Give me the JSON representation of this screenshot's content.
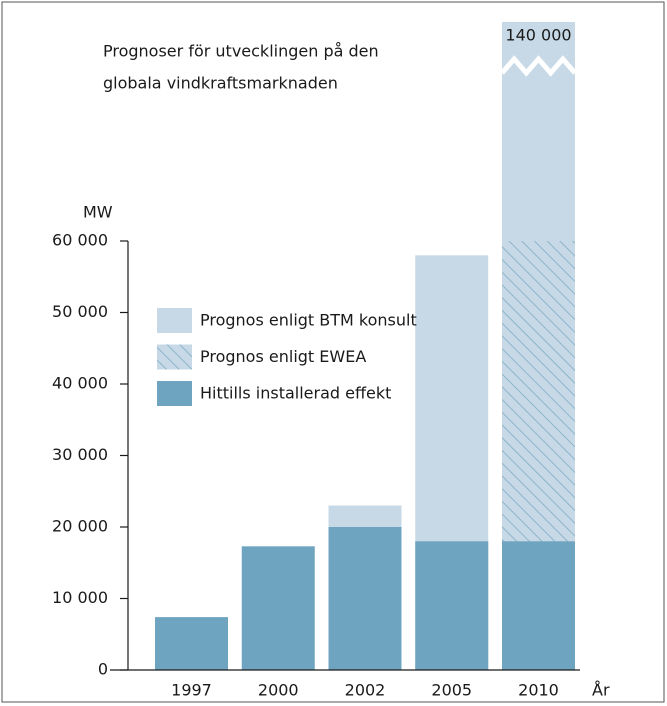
{
  "chart_data": {
    "type": "bar",
    "title_lines": [
      "Prognoser för utvecklingen på den",
      "globala vindkraftsmarknaden"
    ],
    "y_label": "MW",
    "x_label": "År",
    "categories": [
      "1997",
      "2000",
      "2002",
      "2005",
      "2010"
    ],
    "series": [
      {
        "name": "Prognos enligt BTM konsult",
        "color": "#c7d9e6",
        "style": "solid",
        "values": [
          null,
          null,
          23000,
          58000,
          140000
        ],
        "value_labels": [
          null,
          null,
          null,
          null,
          "140 000"
        ]
      },
      {
        "name": "Prognos enligt EWEA",
        "color": "#c7d9e6",
        "hatch_color": "#8db4cb",
        "style": "hatch",
        "values": [
          null,
          null,
          null,
          null,
          60000
        ]
      },
      {
        "name": "Hittills installerad effekt",
        "color": "#6fa4c0",
        "style": "solid",
        "values": [
          7400,
          17300,
          20000,
          18000,
          18000
        ]
      }
    ],
    "ylim": [
      0,
      60000
    ],
    "yticks": [
      {
        "value": 0,
        "label": "0"
      },
      {
        "value": 10000,
        "label": "10 000"
      },
      {
        "value": 20000,
        "label": "20 000"
      },
      {
        "value": 30000,
        "label": "30 000"
      },
      {
        "value": 40000,
        "label": "40 000"
      },
      {
        "value": 50000,
        "label": "50 000"
      },
      {
        "value": 60000,
        "label": "60 000"
      }
    ]
  }
}
